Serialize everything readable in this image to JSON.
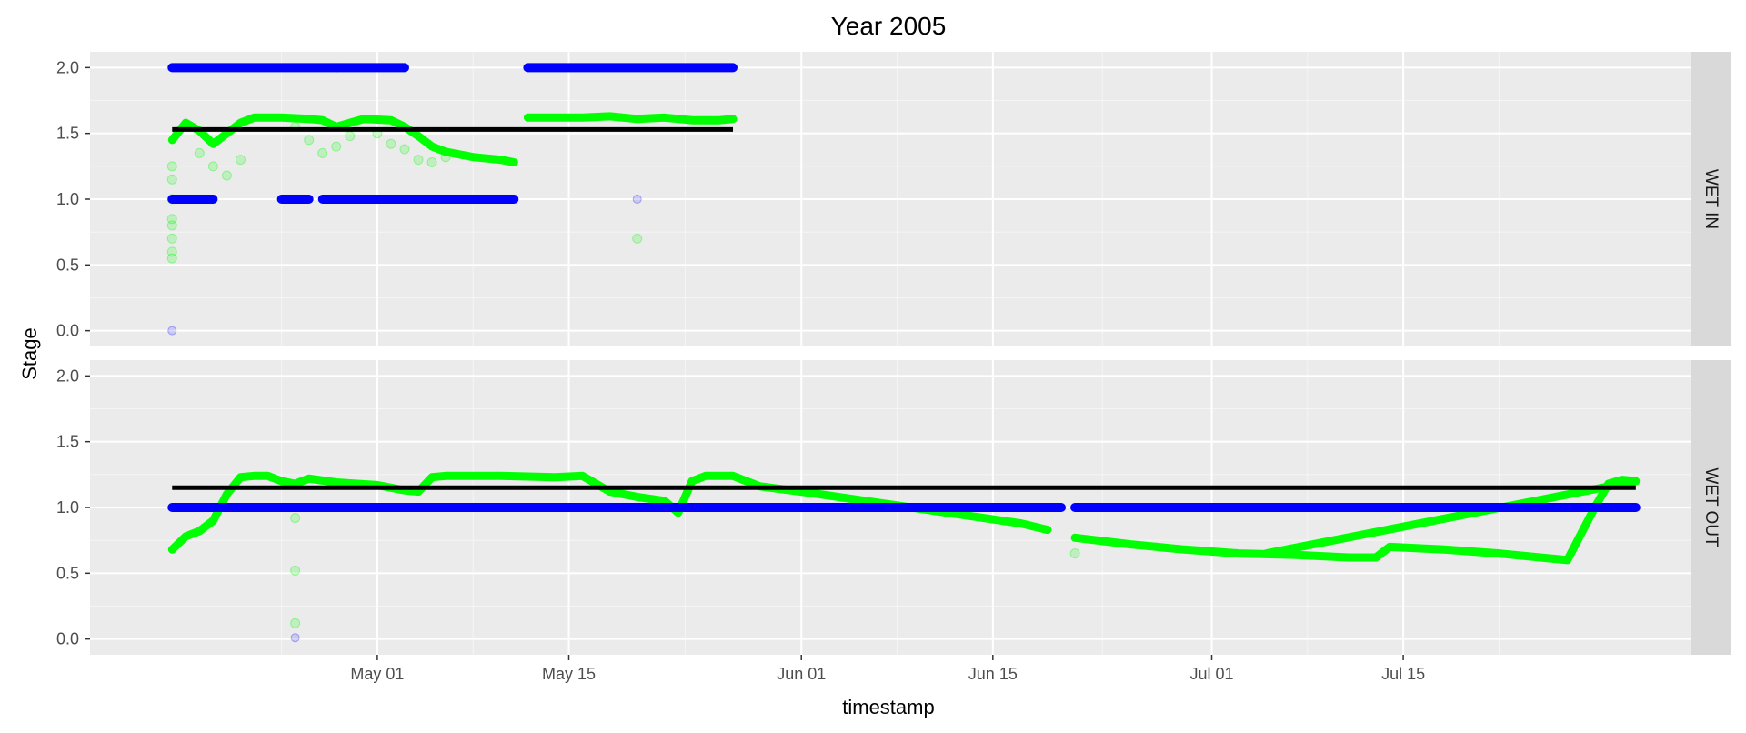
{
  "chart_data": {
    "type": "scatter",
    "title": "Year 2005",
    "xlabel": "timestamp",
    "ylabel": "Stage",
    "x_range": [
      "2005-04-10",
      "2005-08-05"
    ],
    "ylim": [
      -0.12,
      2.12
    ],
    "x_ticks": [
      {
        "date": "2005-05-01",
        "label": "May 01"
      },
      {
        "date": "2005-05-15",
        "label": "May 15"
      },
      {
        "date": "2005-06-01",
        "label": "Jun 01"
      },
      {
        "date": "2005-06-15",
        "label": "Jun 15"
      },
      {
        "date": "2005-07-01",
        "label": "Jul 01"
      },
      {
        "date": "2005-07-15",
        "label": "Jul 15"
      }
    ],
    "y_ticks": [
      "0.0",
      "0.5",
      "1.0",
      "1.5",
      "2.0"
    ],
    "grid": true,
    "colors": {
      "green": "#00ff00",
      "blue": "#0000ff",
      "black": "#000000",
      "panel": "#ebebeb",
      "strip": "#d9d9d9"
    },
    "panels": [
      {
        "strip": "WET IN",
        "green_series": [
          [
            "2005-04-16",
            1.45
          ],
          [
            "2005-04-17",
            1.58
          ],
          [
            "2005-04-18",
            1.52
          ],
          [
            "2005-04-19",
            1.42
          ],
          [
            "2005-04-20",
            1.5
          ],
          [
            "2005-04-21",
            1.58
          ],
          [
            "2005-04-22",
            1.62
          ],
          [
            "2005-04-24",
            1.62
          ],
          [
            "2005-04-26",
            1.61
          ],
          [
            "2005-04-27",
            1.6
          ],
          [
            "2005-04-28",
            1.55
          ],
          [
            "2005-04-29",
            1.58
          ],
          [
            "2005-04-30",
            1.61
          ],
          [
            "2005-05-02",
            1.6
          ],
          [
            "2005-05-03",
            1.55
          ],
          [
            "2005-05-04",
            1.48
          ],
          [
            "2005-05-05",
            1.4
          ],
          [
            "2005-05-06",
            1.36
          ],
          [
            "2005-05-07",
            1.34
          ],
          [
            "2005-05-08",
            1.32
          ],
          [
            "2005-05-09",
            1.31
          ],
          [
            "2005-05-10",
            1.3
          ],
          [
            "2005-05-11",
            1.28
          ]
        ],
        "green_series_2": [
          [
            "2005-05-12",
            1.62
          ],
          [
            "2005-05-14",
            1.62
          ],
          [
            "2005-05-16",
            1.62
          ],
          [
            "2005-05-18",
            1.63
          ],
          [
            "2005-05-20",
            1.61
          ],
          [
            "2005-05-22",
            1.62
          ],
          [
            "2005-05-24",
            1.6
          ],
          [
            "2005-05-26",
            1.6
          ],
          [
            "2005-05-27",
            1.61
          ]
        ],
        "green_scatter": [
          [
            "2005-04-16",
            0.55
          ],
          [
            "2005-04-16",
            0.7
          ],
          [
            "2005-04-16",
            0.85
          ],
          [
            "2005-04-16",
            1.0
          ],
          [
            "2005-04-16",
            1.15
          ],
          [
            "2005-04-16",
            1.25
          ],
          [
            "2005-04-16",
            0.6
          ],
          [
            "2005-04-16",
            0.8
          ],
          [
            "2005-04-18",
            1.35
          ],
          [
            "2005-04-19",
            1.25
          ],
          [
            "2005-04-20",
            1.18
          ],
          [
            "2005-04-21",
            1.3
          ],
          [
            "2005-04-25",
            1.55
          ],
          [
            "2005-04-26",
            1.45
          ],
          [
            "2005-04-27",
            1.35
          ],
          [
            "2005-04-28",
            1.4
          ],
          [
            "2005-04-29",
            1.48
          ],
          [
            "2005-05-01",
            1.5
          ],
          [
            "2005-05-02",
            1.42
          ],
          [
            "2005-05-03",
            1.38
          ],
          [
            "2005-05-04",
            1.3
          ],
          [
            "2005-05-05",
            1.28
          ],
          [
            "2005-05-06",
            1.32
          ],
          [
            "2005-05-20",
            0.7
          ]
        ],
        "blue_runs": [
          {
            "y": 2.0,
            "from": "2005-04-16",
            "to": "2005-04-28"
          },
          {
            "y": 2.0,
            "from": "2005-04-28",
            "to": "2005-05-03"
          },
          {
            "y": 2.0,
            "from": "2005-05-12",
            "to": "2005-05-27"
          },
          {
            "y": 1.0,
            "from": "2005-04-16",
            "to": "2005-04-19"
          },
          {
            "y": 1.0,
            "from": "2005-04-24",
            "to": "2005-04-26"
          },
          {
            "y": 1.0,
            "from": "2005-04-27",
            "to": "2005-05-11"
          }
        ],
        "blue_scatter": [
          [
            "2005-04-16",
            0.0
          ],
          [
            "2005-04-19",
            1.0
          ],
          [
            "2005-05-20",
            1.0
          ]
        ],
        "black_line": {
          "y": 1.53,
          "from": "2005-04-16",
          "to": "2005-05-27"
        }
      },
      {
        "strip": "WET OUT",
        "green_series": [
          [
            "2005-04-16",
            0.68
          ],
          [
            "2005-04-17",
            0.78
          ],
          [
            "2005-04-18",
            0.82
          ],
          [
            "2005-04-19",
            0.9
          ],
          [
            "2005-04-20",
            1.1
          ],
          [
            "2005-04-21",
            1.23
          ],
          [
            "2005-04-22",
            1.24
          ],
          [
            "2005-04-23",
            1.24
          ],
          [
            "2005-04-24",
            1.2
          ],
          [
            "2005-04-25",
            1.18
          ],
          [
            "2005-04-26",
            1.22
          ],
          [
            "2005-04-28",
            1.19
          ],
          [
            "2005-05-01",
            1.17
          ],
          [
            "2005-05-03",
            1.13
          ],
          [
            "2005-05-04",
            1.12
          ],
          [
            "2005-05-05",
            1.23
          ],
          [
            "2005-05-06",
            1.24
          ],
          [
            "2005-05-10",
            1.24
          ],
          [
            "2005-05-14",
            1.23
          ],
          [
            "2005-05-16",
            1.24
          ],
          [
            "2005-05-18",
            1.12
          ],
          [
            "2005-05-20",
            1.08
          ],
          [
            "2005-05-22",
            1.05
          ],
          [
            "2005-05-23",
            0.96
          ],
          [
            "2005-05-24",
            1.2
          ],
          [
            "2005-05-25",
            1.24
          ],
          [
            "2005-05-27",
            1.24
          ],
          [
            "2005-05-29",
            1.16
          ],
          [
            "2005-06-01",
            1.12
          ],
          [
            "2005-06-05",
            1.06
          ],
          [
            "2005-06-09",
            1.0
          ],
          [
            "2005-06-13",
            0.94
          ],
          [
            "2005-06-17",
            0.88
          ],
          [
            "2005-06-19",
            0.83
          ]
        ],
        "green_series_2": [
          [
            "2005-06-21",
            0.77
          ],
          [
            "2005-06-25",
            0.72
          ],
          [
            "2005-06-29",
            0.68
          ],
          [
            "2005-07-03",
            0.65
          ],
          [
            "2005-07-07",
            0.64
          ],
          [
            "2005-07-11",
            0.62
          ],
          [
            "2005-07-13",
            0.62
          ],
          [
            "2005-07-14",
            0.7
          ],
          [
            "2005-07-18",
            0.68
          ],
          [
            "2005-07-22",
            0.65
          ],
          [
            "2005-07-27",
            0.6
          ],
          [
            "2005-07-29",
            1.0
          ],
          [
            "2005-07-30",
            1.18
          ],
          [
            "2005-07-31",
            1.21
          ],
          [
            "2005-08-01",
            1.2
          ],
          [
            "2005-07-05",
            0.65
          ]
        ],
        "green_scatter": [
          [
            "2005-04-25",
            0.92
          ],
          [
            "2005-04-25",
            0.52
          ],
          [
            "2005-04-25",
            0.12
          ],
          [
            "2005-06-21",
            0.65
          ]
        ],
        "blue_runs": [
          {
            "y": 1.0,
            "from": "2005-04-16",
            "to": "2005-06-20"
          },
          {
            "y": 1.0,
            "from": "2005-06-21",
            "to": "2005-08-01"
          }
        ],
        "blue_scatter": [
          [
            "2005-04-25",
            0.01
          ]
        ],
        "black_line": {
          "y": 1.15,
          "from": "2005-04-16",
          "to": "2005-08-01"
        }
      }
    ]
  }
}
